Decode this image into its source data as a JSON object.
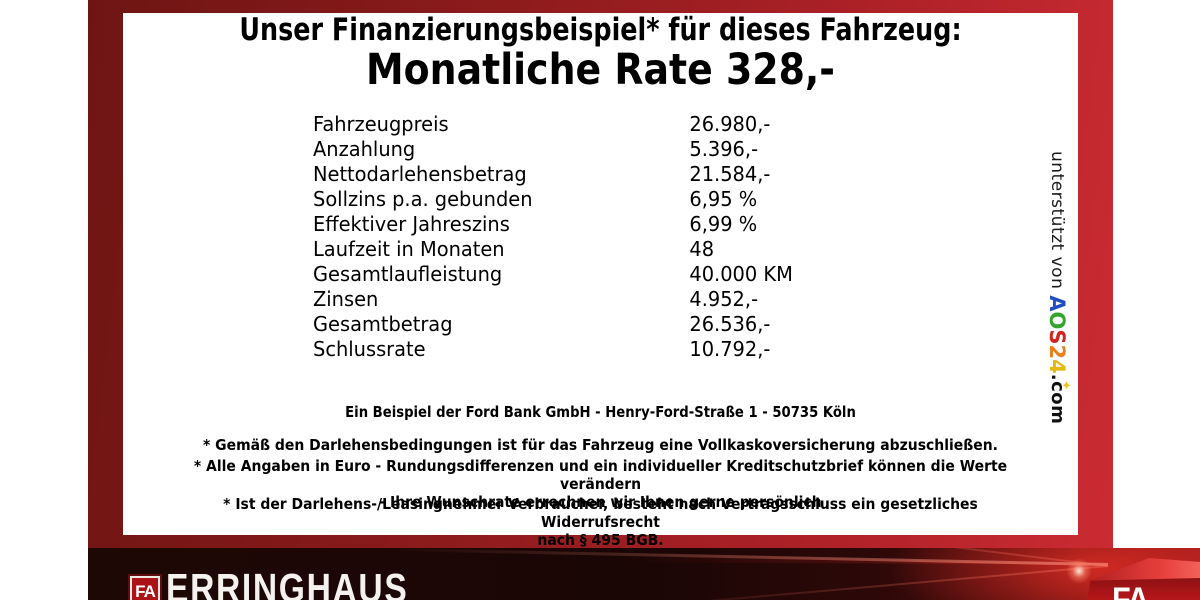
{
  "panel": {
    "title_line1": "Unser Finanzierungsbeispiel* für dieses Fahrzeug:",
    "title_line2": "Monatliche Rate 328,-",
    "table": {
      "rows": [
        {
          "label": "Fahrzeugpreis",
          "value": "26.980,-"
        },
        {
          "label": "Anzahlung",
          "value": "5.396,-"
        },
        {
          "label": "Nettodarlehensbetrag",
          "value": "21.584,-"
        },
        {
          "label": "Sollzins p.a. gebunden",
          "value": "6,95 %"
        },
        {
          "label": "Effektiver Jahreszins",
          "value": "6,99 %"
        },
        {
          "label": "Laufzeit in Monaten",
          "value": "48"
        },
        {
          "label": "Gesamtlaufleistung",
          "value": "40.000 KM"
        },
        {
          "label": "Zinsen",
          "value": "4.952,-"
        },
        {
          "label": "Gesamtbetrag",
          "value": "26.536,-"
        },
        {
          "label": "Schlussrate",
          "value": "10.792,-"
        }
      ]
    },
    "bank_line": "Ein Beispiel der Ford Bank GmbH - Henry-Ford-Straße 1 - 50735 Köln",
    "footnote1": "* Gemäß den Darlehensbedingungen ist für das Fahrzeug eine Vollkaskoversicherung abzuschließen.",
    "footnote2_line1": "* Alle Angaben in Euro - Rundungsdifferenzen und ein individueller Kreditschutzbrief können die Werte verändern",
    "footnote2_line2": "- Ihre Wunschrate errechnen wir Ihnen gerne persönlich",
    "footnote3_line1": "* Ist der Darlehens-/Leasingnehmer Verbraucher, besteht nach Vertragsschluss ein gesetzliches Widerrufsrecht",
    "footnote3_line2": "nach § 495 BGB."
  },
  "sidebar": {
    "supported_by": "unterstützt von ",
    "logo": {
      "l1": "A",
      "l2": "O",
      "l3": "S",
      "l4": "2",
      "l5": "4"
    },
    "domain": ".com",
    "sparkle": "✦"
  },
  "footer": {
    "dealer_box_letters": "FA",
    "dealer_name": "ERRINGHAUS",
    "cube_letters": "FA"
  },
  "colors": {
    "frame_red_dark": "#6e1513",
    "frame_red_bright": "#cb2b33",
    "panel_background": "#ffffff",
    "text": "#000000",
    "footer_band_dark": "#1a0605",
    "footer_glow_red": "#e12d26",
    "aos_a_blue": "#1f4fc2",
    "aos_o_green": "#36a32e",
    "aos_s_red": "#d2231f",
    "aos_2_orange": "#e87f18",
    "aos_4_gold": "#e3b80f"
  }
}
